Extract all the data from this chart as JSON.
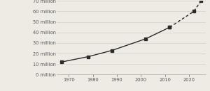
{
  "historic_years": [
    1967,
    1978,
    1988,
    2002,
    2012
  ],
  "historic_values": [
    12,
    17,
    23,
    34,
    45
  ],
  "predicted_years": [
    2012,
    2022,
    2025
  ],
  "predicted_values": [
    45,
    60,
    70
  ],
  "ytick_labels": [
    "0 million",
    "10 million",
    "20 million",
    "30 million",
    "40 million",
    "50 million",
    "60 million",
    "70 million"
  ],
  "ytick_values": [
    0,
    10,
    20,
    30,
    40,
    50,
    60,
    70
  ],
  "xtick_values": [
    1970,
    1980,
    1990,
    2000,
    2010,
    2020
  ],
  "ylim": [
    0,
    70
  ],
  "xlim": [
    1965,
    2027
  ],
  "line_color": "#2a2a2a",
  "marker": "s",
  "marker_size": 2.5,
  "line_width": 1.0,
  "background_color": "#eeebe5",
  "grid_color": "#d8d4cc",
  "font_size": 4.8,
  "tick_color": "#555555"
}
